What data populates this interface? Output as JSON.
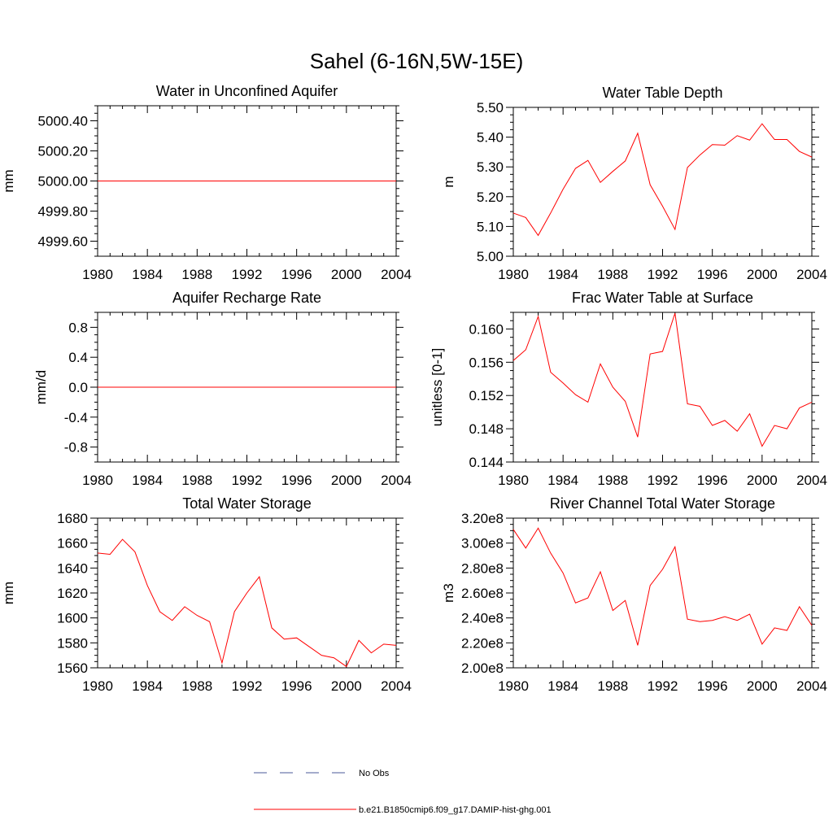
{
  "figure": {
    "title": "Sahel (6-16N,5W-15E)"
  },
  "legend": {
    "items": [
      {
        "label": "No Obs",
        "color": "#4a5a9a",
        "dash": true
      },
      {
        "label": "b.e21.B1850cmip6.f09_g17.DAMIP-hist-ghg.001",
        "color": "#ff0000",
        "dash": false
      }
    ]
  },
  "chart_data": [
    {
      "type": "line",
      "title": "Water in Unconfined Aquifer",
      "ylabel": "mm",
      "xlim": [
        1980,
        2004
      ],
      "ylim": [
        4999.5,
        5000.5
      ],
      "x_ticks": [
        1980,
        1984,
        1988,
        1992,
        1996,
        2000,
        2004
      ],
      "y_ticks": [
        4999.6,
        4999.8,
        5000.0,
        5000.2,
        5000.4
      ],
      "y_tick_labels": [
        "4999.60",
        "4999.80",
        "5000.00",
        "5000.20",
        "5000.40"
      ],
      "x": [
        1980,
        1981,
        1982,
        1983,
        1984,
        1985,
        1986,
        1987,
        1988,
        1989,
        1990,
        1991,
        1992,
        1993,
        1994,
        1995,
        1996,
        1997,
        1998,
        1999,
        2000,
        2001,
        2002,
        2003,
        2004
      ],
      "series": [
        {
          "color": "#ff0000",
          "values": [
            5000,
            5000,
            5000,
            5000,
            5000,
            5000,
            5000,
            5000,
            5000,
            5000,
            5000,
            5000,
            5000,
            5000,
            5000,
            5000,
            5000,
            5000,
            5000,
            5000,
            5000,
            5000,
            5000,
            5000,
            5000
          ]
        }
      ]
    },
    {
      "type": "line",
      "title": "Water Table Depth",
      "ylabel": "m",
      "xlim": [
        1980,
        2004
      ],
      "ylim": [
        5.0,
        5.5
      ],
      "x_ticks": [
        1980,
        1984,
        1988,
        1992,
        1996,
        2000,
        2004
      ],
      "y_ticks": [
        5.0,
        5.1,
        5.2,
        5.3,
        5.4,
        5.5
      ],
      "y_tick_labels": [
        "5.00",
        "5.10",
        "5.20",
        "5.30",
        "5.40",
        "5.50"
      ],
      "x": [
        1980,
        1981,
        1982,
        1983,
        1984,
        1985,
        1986,
        1987,
        1988,
        1989,
        1990,
        1991,
        1992,
        1993,
        1994,
        1995,
        1996,
        1997,
        1998,
        1999,
        2000,
        2001,
        2002,
        2003,
        2004
      ],
      "series": [
        {
          "color": "#ff0000",
          "values": [
            5.145,
            5.13,
            5.07,
            5.145,
            5.225,
            5.295,
            5.322,
            5.248,
            5.285,
            5.32,
            5.413,
            5.24,
            5.168,
            5.09,
            5.298,
            5.34,
            5.375,
            5.373,
            5.405,
            5.39,
            5.445,
            5.392,
            5.392,
            5.352,
            5.333
          ]
        }
      ]
    },
    {
      "type": "line",
      "title": "Aquifer Recharge Rate",
      "ylabel": "mm/d",
      "xlim": [
        1980,
        2004
      ],
      "ylim": [
        -1.0,
        1.0
      ],
      "x_ticks": [
        1980,
        1984,
        1988,
        1992,
        1996,
        2000,
        2004
      ],
      "y_ticks": [
        -0.8,
        -0.4,
        0.0,
        0.4,
        0.8
      ],
      "y_tick_labels": [
        "-0.8",
        "-0.4",
        "0.0",
        "0.4",
        "0.8"
      ],
      "x": [
        1980,
        1981,
        1982,
        1983,
        1984,
        1985,
        1986,
        1987,
        1988,
        1989,
        1990,
        1991,
        1992,
        1993,
        1994,
        1995,
        1996,
        1997,
        1998,
        1999,
        2000,
        2001,
        2002,
        2003,
        2004
      ],
      "series": [
        {
          "color": "#ff0000",
          "values": [
            0,
            0,
            0,
            0,
            0,
            0,
            0,
            0,
            0,
            0,
            0,
            0,
            0,
            0,
            0,
            0,
            0,
            0,
            0,
            0,
            0,
            0,
            0,
            0,
            0
          ]
        }
      ]
    },
    {
      "type": "line",
      "title": "Frac Water Table at Surface",
      "ylabel": "unitless [0-1]",
      "xlim": [
        1980,
        2004
      ],
      "ylim": [
        0.144,
        0.162
      ],
      "x_ticks": [
        1980,
        1984,
        1988,
        1992,
        1996,
        2000,
        2004
      ],
      "y_ticks": [
        0.144,
        0.148,
        0.152,
        0.156,
        0.16
      ],
      "y_tick_labels": [
        "0.144",
        "0.148",
        "0.152",
        "0.156",
        "0.160"
      ],
      "x": [
        1980,
        1981,
        1982,
        1983,
        1984,
        1985,
        1986,
        1987,
        1988,
        1989,
        1990,
        1991,
        1992,
        1993,
        1994,
        1995,
        1996,
        1997,
        1998,
        1999,
        2000,
        2001,
        2002,
        2003,
        2004
      ],
      "series": [
        {
          "color": "#ff0000",
          "values": [
            0.1562,
            0.1575,
            0.1615,
            0.1548,
            0.1535,
            0.1521,
            0.1512,
            0.1558,
            0.153,
            0.1513,
            0.147,
            0.157,
            0.1573,
            0.1619,
            0.151,
            0.1507,
            0.1484,
            0.149,
            0.1477,
            0.1498,
            0.1459,
            0.1484,
            0.148,
            0.1505,
            0.1512
          ]
        }
      ]
    },
    {
      "type": "line",
      "title": "Total Water Storage",
      "ylabel": "mm",
      "xlim": [
        1980,
        2004
      ],
      "ylim": [
        1560,
        1680
      ],
      "x_ticks": [
        1980,
        1984,
        1988,
        1992,
        1996,
        2000,
        2004
      ],
      "y_ticks": [
        1560,
        1580,
        1600,
        1620,
        1640,
        1660,
        1680
      ],
      "y_tick_labels": [
        "1560",
        "1580",
        "1600",
        "1620",
        "1640",
        "1660",
        "1680"
      ],
      "x": [
        1980,
        1981,
        1982,
        1983,
        1984,
        1985,
        1986,
        1987,
        1988,
        1989,
        1990,
        1991,
        1992,
        1993,
        1994,
        1995,
        1996,
        1997,
        1998,
        1999,
        2000,
        2001,
        2002,
        2003,
        2004
      ],
      "series": [
        {
          "color": "#ff0000",
          "values": [
            1652,
            1651,
            1663,
            1653,
            1626,
            1605,
            1598,
            1609,
            1602,
            1597,
            1564,
            1605,
            1620,
            1633,
            1592,
            1583,
            1584,
            1577,
            1570,
            1568,
            1561,
            1582,
            1572,
            1579,
            1578
          ]
        }
      ]
    },
    {
      "type": "line",
      "title": "River Channel Total Water Storage",
      "ylabel": "m3",
      "xlim": [
        1980,
        2004
      ],
      "ylim": [
        200000000,
        320000000
      ],
      "x_ticks": [
        1980,
        1984,
        1988,
        1992,
        1996,
        2000,
        2004
      ],
      "y_ticks": [
        200000000,
        220000000,
        240000000,
        260000000,
        280000000,
        300000000,
        320000000
      ],
      "y_tick_labels": [
        "2.00e8",
        "2.20e8",
        "2.40e8",
        "2.60e8",
        "2.80e8",
        "3.00e8",
        "3.20e8"
      ],
      "x": [
        1980,
        1981,
        1982,
        1983,
        1984,
        1985,
        1986,
        1987,
        1988,
        1989,
        1990,
        1991,
        1992,
        1993,
        1994,
        1995,
        1996,
        1997,
        1998,
        1999,
        2000,
        2001,
        2002,
        2003,
        2004
      ],
      "series": [
        {
          "color": "#ff0000",
          "values": [
            311000000,
            296000000,
            312000000,
            292000000,
            276000000,
            252000000,
            256000000,
            277000000,
            246000000,
            254000000,
            218000000,
            266000000,
            279000000,
            297000000,
            239000000,
            237000000,
            238000000,
            241000000,
            238000000,
            243000000,
            219000000,
            232000000,
            230000000,
            249000000,
            234000000
          ]
        }
      ]
    }
  ]
}
